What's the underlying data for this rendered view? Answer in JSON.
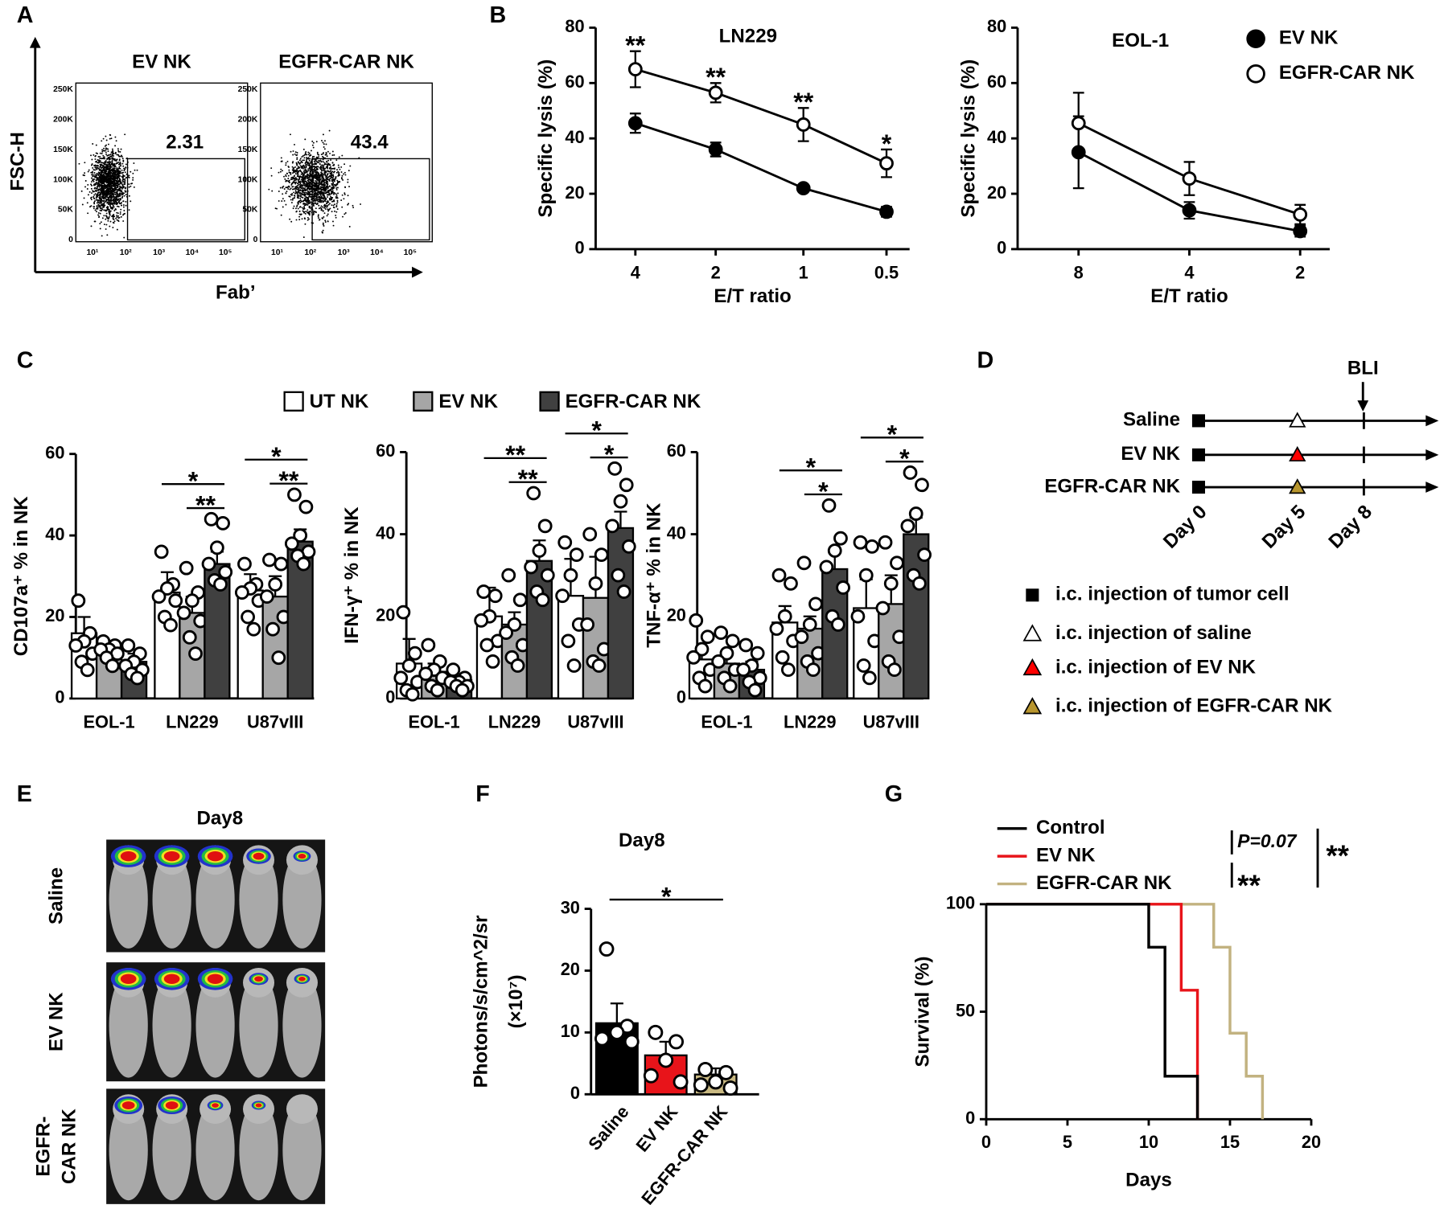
{
  "panel_labels": [
    "A",
    "B",
    "C",
    "D",
    "E",
    "F",
    "G"
  ],
  "flow": {
    "y_label": "FSC-H",
    "x_label": "Fab’",
    "y_ticks": [
      "250K",
      "200K",
      "150K",
      "100K",
      "50K",
      "0"
    ],
    "x_ticks": [
      "10¹",
      "10²",
      "10³",
      "10⁴",
      "10⁵"
    ],
    "plots": [
      {
        "title": "EV NK",
        "gate": "2.31"
      },
      {
        "title": "EGFR-CAR NK",
        "gate": "43.4"
      }
    ]
  },
  "timeline": {
    "marker_label": "BLI",
    "days": [
      "Day 0",
      "Day 5",
      "Day 8"
    ],
    "rows": [
      {
        "label": "Saline",
        "fill": "#ffffff"
      },
      {
        "label": "EV NK",
        "fill": "#ff0000"
      },
      {
        "label": "EGFR-CAR NK",
        "fill": "#b8962e"
      }
    ],
    "legend": [
      {
        "text": "i.c. injection of tumor cell",
        "shape": "square",
        "fill": "#000000"
      },
      {
        "text": "i.c. injection of saline",
        "shape": "triangle",
        "fill": "#ffffff"
      },
      {
        "text": "i.c. injection of EV NK",
        "shape": "triangle",
        "fill": "#ff0000"
      },
      {
        "text": "i.c. injection of EGFR-CAR NK",
        "shape": "triangle",
        "fill": "#b8962e"
      }
    ]
  },
  "imaging": {
    "title": "Day8",
    "rows": [
      [
        "Saline"
      ],
      [
        "EV NK"
      ],
      [
        "EGFR-",
        "CAR NK"
      ]
    ]
  },
  "chart_data": [
    {
      "type": "line",
      "title": "LN229",
      "x_label": "E/T ratio",
      "y_label": "Specific lysis (%)",
      "categories": [
        "4",
        "2",
        "1",
        "0.5"
      ],
      "ylim": [
        0,
        80
      ],
      "yticks": [
        0,
        20,
        40,
        60,
        80
      ],
      "series": [
        {
          "color": "#000000",
          "fill": "#000000",
          "values": [
            45.5,
            36,
            22,
            13.5
          ],
          "errors": [
            3.5,
            2.5,
            0.5,
            1.8
          ]
        },
        {
          "color": "#000000",
          "fill": "#ffffff",
          "values": [
            65,
            56.5,
            45,
            31
          ],
          "errors": [
            6.5,
            3.5,
            6,
            5
          ]
        }
      ],
      "annotations": [
        "**",
        "**",
        "**",
        "*"
      ]
    },
    {
      "type": "line",
      "title": "EOL-1",
      "x_label": "E/T ratio",
      "y_label": "Specific lysis (%)",
      "categories": [
        "8",
        "4",
        "2"
      ],
      "ylim": [
        0,
        80
      ],
      "yticks": [
        0,
        20,
        40,
        60,
        80
      ],
      "legend": "upper right",
      "series": [
        {
          "name": "EV NK",
          "color": "#000000",
          "fill": "#000000",
          "values": [
            35,
            14,
            6.5
          ],
          "errors": [
            13,
            3,
            2
          ]
        },
        {
          "name": "EGFR-CAR NK",
          "color": "#000000",
          "fill": "#ffffff",
          "values": [
            45.5,
            25.5,
            12.5
          ],
          "errors": [
            11,
            6,
            3.5
          ]
        }
      ]
    },
    {
      "type": "bar",
      "y_label": "CD107a⁺ % in NK",
      "categories": [
        "EOL-1",
        "LN229",
        "U87vIII"
      ],
      "ylim": [
        0,
        60
      ],
      "yticks": [
        0,
        20,
        40,
        60
      ],
      "legend": "top",
      "series": [
        {
          "name": "UT NK",
          "color": "#ffffff",
          "values": [
            16,
            26,
            26.5
          ],
          "errors": [
            4,
            5,
            4
          ],
          "points": [
            [
              24,
              16,
              14,
              13,
              11,
              9,
              7
            ],
            [
              36,
              28,
              27,
              25,
              24,
              20,
              18
            ],
            [
              33,
              28,
              27,
              26,
              24,
              20,
              17
            ]
          ]
        },
        {
          "name": "EV NK",
          "color": "#a6a6a6",
          "values": [
            12,
            21,
            25
          ],
          "errors": [
            2,
            4,
            5
          ],
          "points": [
            [
              14,
              13,
              12,
              12,
              11,
              10,
              8
            ],
            [
              32,
              26,
              24,
              21,
              19,
              15,
              11
            ],
            [
              34,
              33,
              28,
              25,
              20,
              17,
              10
            ]
          ]
        },
        {
          "name": "EGFR-CAR NK",
          "color": "#404040",
          "values": [
            9,
            33,
            38.5
          ],
          "errors": [
            2,
            3,
            3
          ],
          "points": [
            [
              13,
              11,
              9,
              8,
              7,
              6,
              5
            ],
            [
              44,
              43,
              37,
              33,
              31,
              29,
              28
            ],
            [
              50,
              47,
              40,
              38,
              36,
              35,
              33
            ]
          ]
        }
      ],
      "brackets": [
        {
          "text": "*",
          "category": 1,
          "from": 0,
          "to": 2
        },
        {
          "text": "**",
          "category": 1,
          "from": 1,
          "to": 2
        },
        {
          "text": "*",
          "category": 2,
          "from": 0,
          "to": 2
        },
        {
          "text": "**",
          "category": 2,
          "from": 1,
          "to": 2
        }
      ]
    },
    {
      "type": "bar",
      "y_label": "IFN-γ⁺ % in NK",
      "categories": [
        "EOL-1",
        "LN229",
        "U87vIII"
      ],
      "ylim": [
        0,
        60
      ],
      "yticks": [
        0,
        20,
        40,
        60
      ],
      "series": [
        {
          "color": "#ffffff",
          "values": [
            8.5,
            20,
            25
          ],
          "errors": [
            6,
            7,
            9
          ],
          "points": [
            [
              21,
              11,
              8,
              5,
              4,
              2,
              1
            ],
            [
              26,
              25,
              20,
              19,
              14,
              13,
              9
            ],
            [
              38,
              35,
              30,
              25,
              18,
              14,
              8
            ]
          ]
        },
        {
          "color": "#a6a6a6",
          "values": [
            6.5,
            18,
            24.5
          ],
          "errors": [
            2,
            3,
            10
          ],
          "points": [
            [
              13,
              9,
              7,
              6,
              5,
              3,
              2
            ],
            [
              30,
              24,
              18,
              16,
              13,
              10,
              8
            ],
            [
              40,
              35,
              28,
              18,
              12,
              9,
              8
            ]
          ]
        },
        {
          "color": "#404040",
          "values": [
            4.5,
            33.5,
            41.5
          ],
          "errors": [
            1,
            5,
            4
          ],
          "points": [
            [
              7,
              5,
              4,
              4,
              3,
              3,
              2
            ],
            [
              50,
              42,
              36,
              32,
              30,
              26,
              24
            ],
            [
              56,
              52,
              48,
              42,
              37,
              30,
              26
            ]
          ]
        }
      ],
      "brackets": [
        {
          "text": "**",
          "category": 1,
          "from": 0,
          "to": 2
        },
        {
          "text": "**",
          "category": 1,
          "from": 1,
          "to": 2
        },
        {
          "text": "*",
          "category": 2,
          "from": 0,
          "to": 2
        },
        {
          "text": "*",
          "category": 2,
          "from": 1,
          "to": 2
        }
      ]
    },
    {
      "type": "bar",
      "y_label": "TNF-α⁺ % in NK",
      "categories": [
        "EOL-1",
        "LN229",
        "U87vIII"
      ],
      "ylim": [
        0,
        60
      ],
      "yticks": [
        0,
        20,
        40,
        60
      ],
      "series": [
        {
          "color": "#ffffff",
          "values": [
            9.5,
            18.5,
            22
          ],
          "errors": [
            3,
            4,
            7
          ],
          "points": [
            [
              19,
              15,
              12,
              10,
              7,
              5,
              3
            ],
            [
              30,
              28,
              20,
              17,
              14,
              10,
              7
            ],
            [
              38,
              37,
              30,
              20,
              14,
              8,
              5
            ]
          ]
        },
        {
          "color": "#a6a6a6",
          "values": [
            8.5,
            17,
            23
          ],
          "errors": [
            2,
            3,
            7
          ],
          "points": [
            [
              16,
              14,
              11,
              9,
              7,
              5,
              3
            ],
            [
              33,
              23,
              18,
              15,
              11,
              9,
              7
            ],
            [
              38,
              33,
              28,
              22,
              15,
              9,
              7
            ]
          ]
        },
        {
          "color": "#404040",
          "values": [
            7,
            31.5,
            40
          ],
          "errors": [
            2,
            4,
            4
          ],
          "points": [
            [
              13,
              11,
              8,
              7,
              5,
              4,
              2
            ],
            [
              47,
              39,
              36,
              32,
              27,
              20,
              18
            ],
            [
              55,
              52,
              45,
              42,
              35,
              30,
              28
            ]
          ]
        }
      ],
      "brackets": [
        {
          "text": "*",
          "category": 1,
          "from": 0,
          "to": 2
        },
        {
          "text": "*",
          "category": 1,
          "from": 1,
          "to": 2
        },
        {
          "text": "*",
          "category": 2,
          "from": 0,
          "to": 2
        },
        {
          "text": "*",
          "category": 2,
          "from": 1,
          "to": 2
        }
      ]
    },
    {
      "type": "bar",
      "title": "Day8",
      "y_label": [
        "Photons/s/cm^2/sr",
        "(×10⁷)"
      ],
      "categories": [
        "Saline",
        "EV NK",
        "EGFR-CAR NK"
      ],
      "colors": [
        "#000000",
        "#e8141a",
        "#c9b982"
      ],
      "values": [
        11.5,
        6.3,
        3.2
      ],
      "errors": [
        3.2,
        2.2,
        1
      ],
      "points": [
        [
          23.5,
          11,
          10,
          9,
          8.5
        ],
        [
          10,
          8.5,
          5.5,
          3,
          2
        ],
        [
          4,
          3.5,
          2,
          1.5,
          1
        ]
      ],
      "ylim": [
        0,
        30
      ],
      "yticks": [
        0,
        10,
        20,
        30
      ],
      "brackets": [
        {
          "text": "*",
          "from": 0,
          "to": 2
        }
      ]
    },
    {
      "type": "step",
      "x_label": "Days",
      "y_label": "Survival (%)",
      "xlim": [
        0,
        20
      ],
      "xticks": [
        0,
        5,
        10,
        15,
        20
      ],
      "ylim": [
        0,
        100
      ],
      "yticks": [
        0,
        50,
        100
      ],
      "legend": "upper left",
      "series": [
        {
          "name": "Control",
          "color": "#000000",
          "x": [
            0,
            10,
            11,
            13
          ],
          "values": [
            100,
            80,
            20,
            0
          ]
        },
        {
          "name": "EV NK",
          "color": "#e8141a",
          "x": [
            0,
            12,
            13
          ],
          "values": [
            100,
            60,
            0
          ]
        },
        {
          "name": "EGFR-CAR NK",
          "color": "#c2b280",
          "x": [
            0,
            14,
            15,
            16,
            17
          ],
          "values": [
            100,
            80,
            40,
            20,
            0
          ]
        }
      ],
      "annotations": [
        "P=0.07",
        "**",
        "**"
      ]
    }
  ]
}
